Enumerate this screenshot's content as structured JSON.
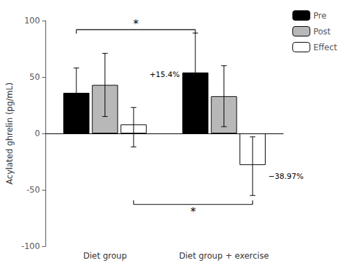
{
  "chart_data": {
    "type": "bar",
    "categories": [
      "Diet group",
      "Diet group + exercise"
    ],
    "series": [
      {
        "name": "Pre",
        "color": "black",
        "values": [
          36,
          54
        ],
        "errors_minus": [
          22,
          35
        ],
        "errors_plus": [
          22,
          35
        ]
      },
      {
        "name": "Post",
        "color": "#b8b8b8",
        "values": [
          43,
          33
        ],
        "errors_minus": [
          28,
          27
        ],
        "errors_plus": [
          28,
          27
        ]
      },
      {
        "name": "Effect",
        "color": "white",
        "values": [
          8,
          -28
        ],
        "errors_minus": [
          20,
          27
        ],
        "errors_plus": [
          15,
          25
        ]
      }
    ],
    "ylabel": "Acylated ghrelin (pg/mL)",
    "ylim": [
      -100,
      100
    ],
    "yticks": [
      -100,
      -50,
      0,
      50,
      100
    ],
    "grid": false,
    "legend": "upper right",
    "annotations": [
      {
        "text": "+15.4%",
        "category": "Diet group",
        "series": "Effect",
        "y": 52
      },
      {
        "text": "−38.97%",
        "category": "Diet group + exercise",
        "series": "Effect",
        "y": -38
      }
    ],
    "brackets": [
      {
        "series": "Pre",
        "y": 92,
        "label": "*"
      },
      {
        "series": "Effect",
        "y": -63,
        "label": "*"
      }
    ]
  }
}
